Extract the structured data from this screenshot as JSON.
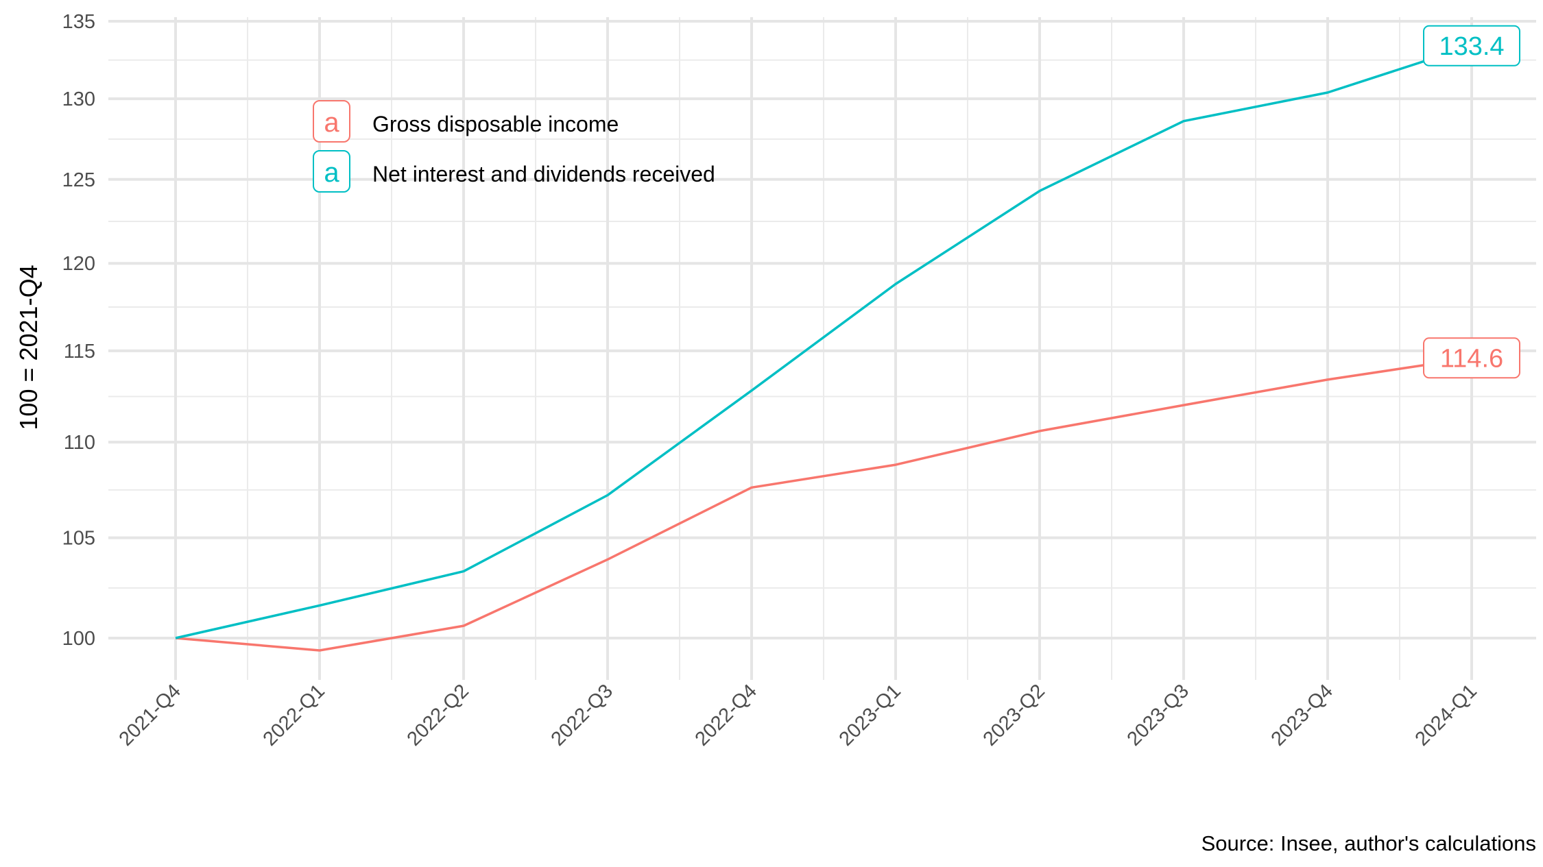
{
  "chart_data": {
    "type": "line",
    "title": "",
    "xlabel": "",
    "ylabel": "100 = 2021-Q4",
    "caption": "Source: Insee, author's calculations",
    "categories": [
      "2021-Q4",
      "2022-Q1",
      "2022-Q2",
      "2022-Q3",
      "2022-Q4",
      "2023-Q1",
      "2023-Q2",
      "2023-Q3",
      "2023-Q4",
      "2024-Q1"
    ],
    "series": [
      {
        "name": "Gross disposable income",
        "color": "#F8766D",
        "values": [
          100.0,
          99.4,
          100.6,
          103.9,
          107.6,
          108.8,
          110.6,
          112.0,
          113.4,
          114.6
        ],
        "end_label": "114.6"
      },
      {
        "name": "Net interest and dividends received",
        "color": "#00BFC4",
        "values": [
          100.0,
          101.6,
          103.3,
          107.2,
          112.8,
          118.8,
          124.3,
          128.6,
          130.4,
          133.4
        ],
        "end_label": "133.4"
      }
    ],
    "yscale": "log",
    "yticks": [
      100,
      105,
      110,
      115,
      120,
      125,
      130,
      135
    ],
    "ylim": [
      98,
      135.2
    ],
    "grid": true,
    "legend_position": "top-left inside",
    "legend_key_glyph": "a"
  }
}
